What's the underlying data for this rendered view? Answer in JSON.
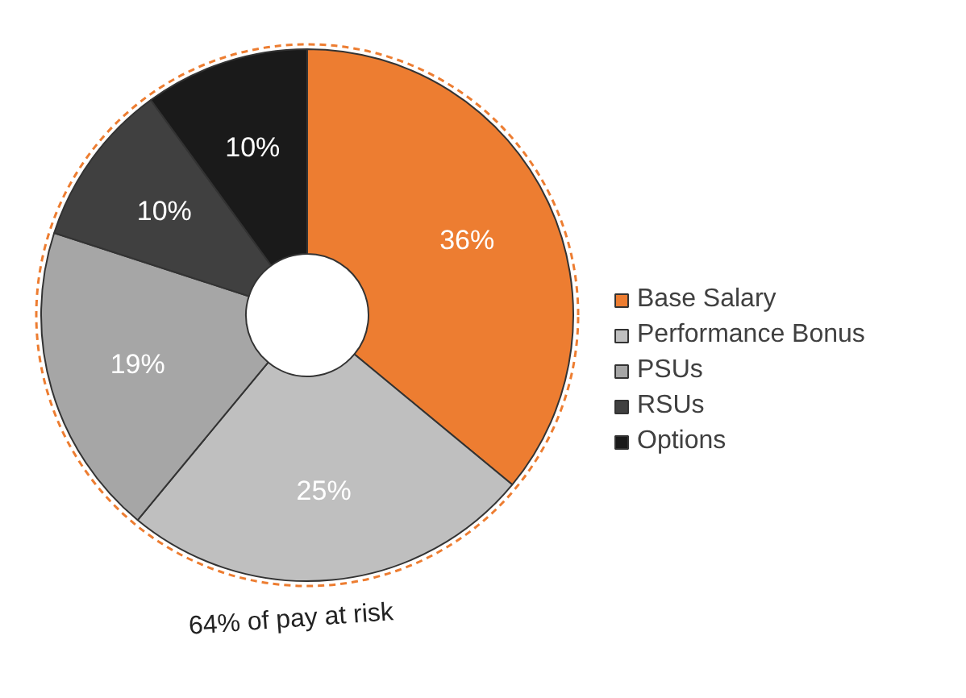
{
  "chart_data": {
    "type": "donut",
    "categories": [
      "Base Salary",
      "Performance Bonus",
      "PSUs",
      "RSUs",
      "Options"
    ],
    "values": [
      36,
      25,
      19,
      10,
      10
    ],
    "colors": [
      "#ed7d31",
      "#bfbfbf",
      "#a6a6a6",
      "#404040",
      "#1a1a1a"
    ],
    "value_labels": [
      "36%",
      "25%",
      "19%",
      "10%",
      "10%"
    ],
    "legend": "right",
    "annotations": [
      "64% of pay at risk"
    ]
  }
}
